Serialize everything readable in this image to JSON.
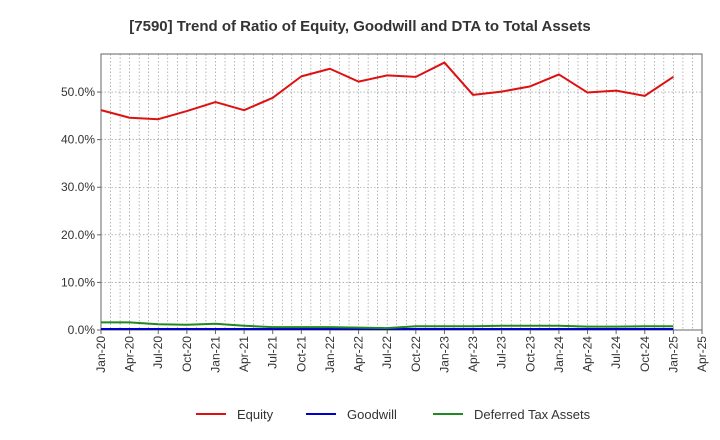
{
  "chart_data": {
    "type": "line",
    "title": "[7590]  Trend of Ratio of Equity, Goodwill and DTA to Total Assets",
    "xlabel": "",
    "ylabel": "",
    "x": [
      "Jan-20",
      "Apr-20",
      "Jul-20",
      "Oct-20",
      "Jan-21",
      "Apr-21",
      "Jul-21",
      "Oct-21",
      "Jan-22",
      "Apr-22",
      "Jul-22",
      "Oct-22",
      "Jan-23",
      "Apr-23",
      "Jul-23",
      "Oct-23",
      "Jan-24",
      "Apr-24",
      "Jul-24",
      "Oct-24",
      "Jan-25"
    ],
    "x_ticks": [
      "Jan-20",
      "Apr-20",
      "Jul-20",
      "Oct-20",
      "Jan-21",
      "Apr-21",
      "Jul-21",
      "Oct-21",
      "Jan-22",
      "Apr-22",
      "Jul-22",
      "Oct-22",
      "Jan-23",
      "Apr-23",
      "Jul-23",
      "Oct-23",
      "Jan-24",
      "Apr-24",
      "Jul-24",
      "Oct-24",
      "Jan-25",
      "Apr-25"
    ],
    "y_ticks": [
      "0.0%",
      "10.0%",
      "20.0%",
      "30.0%",
      "40.0%",
      "50.0%"
    ],
    "ylim": [
      0,
      58
    ],
    "grid": true,
    "legend_position": "bottom",
    "series": [
      {
        "name": "Equity",
        "color": "#dd1111",
        "values": [
          46.2,
          44.6,
          44.3,
          46.0,
          47.9,
          46.2,
          48.8,
          53.3,
          54.9,
          52.2,
          53.5,
          53.2,
          56.2,
          49.4,
          50.1,
          51.2,
          53.7,
          49.9,
          50.3,
          49.2,
          53.2
        ]
      },
      {
        "name": "Goodwill",
        "color": "#0000cc",
        "values": [
          0.2,
          0.2,
          0.2,
          0.2,
          0.2,
          0.2,
          0.2,
          0.2,
          0.2,
          0.2,
          0.2,
          0.2,
          0.2,
          0.2,
          0.2,
          0.2,
          0.2,
          0.2,
          0.2,
          0.2,
          0.2
        ]
      },
      {
        "name": "Deferred Tax Assets",
        "color": "#228822",
        "values": [
          1.6,
          1.6,
          1.2,
          1.1,
          1.3,
          0.9,
          0.6,
          0.6,
          0.6,
          0.5,
          0.4,
          0.8,
          0.8,
          0.8,
          0.9,
          0.9,
          0.9,
          0.7,
          0.7,
          0.8,
          0.8
        ]
      }
    ]
  }
}
